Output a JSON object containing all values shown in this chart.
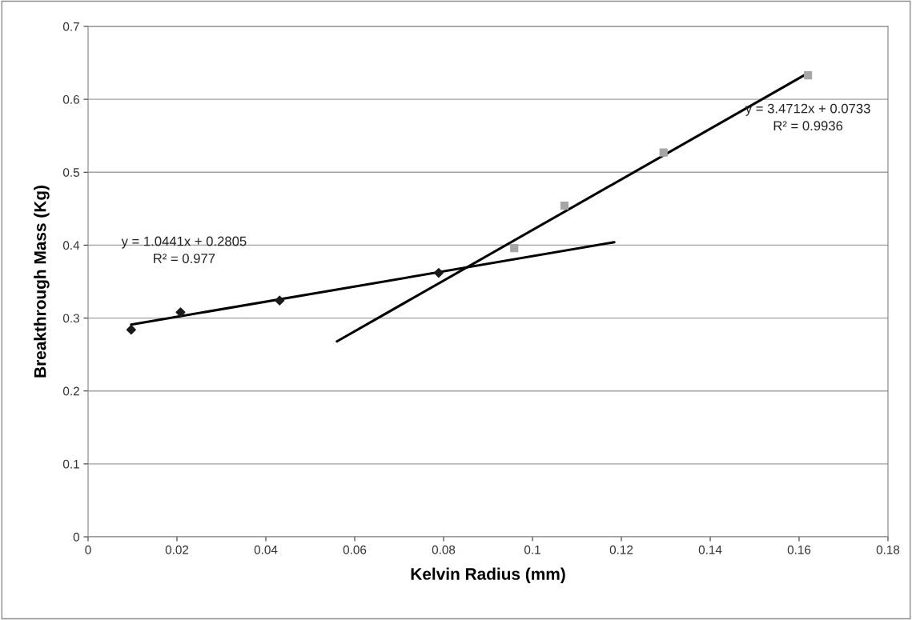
{
  "chart_data": {
    "type": "scatter",
    "xlabel": "Kelvin Radius (mm)",
    "ylabel": "Breakthrough Mass (Kg)",
    "xlim": [
      0,
      0.18
    ],
    "xticks": [
      0,
      0.02,
      0.04,
      0.06,
      0.08,
      0.1,
      0.12,
      0.14,
      0.16,
      0.18
    ],
    "ylim": [
      0,
      0.7
    ],
    "yticks": [
      0,
      0.1,
      0.2,
      0.3,
      0.4,
      0.5,
      0.6,
      0.7
    ],
    "grid": "y",
    "series": [
      {
        "color": "#1a1a1a",
        "marker": "diamond",
        "x": [
          0.0097,
          0.0208,
          0.0431,
          0.0789
        ],
        "values": [
          0.284,
          0.308,
          0.324,
          0.362
        ]
      },
      {
        "color": "#a6a6a6",
        "marker": "square",
        "x": [
          0.0959,
          0.1072,
          0.1295,
          0.162
        ],
        "values": [
          0.396,
          0.454,
          0.527,
          0.633
        ]
      },
      {
        "type": "line",
        "color": "#000000",
        "line_style": "solid",
        "x": [
          0.0097,
          0.1184
        ],
        "values": [
          0.291,
          0.404
        ]
      },
      {
        "type": "line",
        "color": "#000000",
        "line_style": "solid",
        "x": [
          0.056,
          0.162
        ],
        "values": [
          0.268,
          0.636
        ]
      }
    ],
    "annotations": [
      "y = 1.0441x + 0.2805\nR² = 0.977",
      "y = 3.4712x + 0.0733\nR² = 0.9936"
    ]
  }
}
